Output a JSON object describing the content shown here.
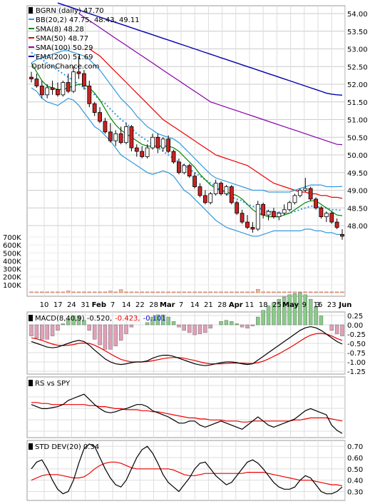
{
  "chart_data": [
    {
      "type": "candlestick",
      "panel": "price",
      "legend": [
        {
          "text": "BGRN (daily) 47.70",
          "color": "#000000",
          "marker": "square"
        },
        {
          "text": "BB(20,2) 47.75, 48.43, 49.11",
          "color": "#3399dd"
        },
        {
          "text": "SMA(8) 48.28",
          "color": "#008800"
        },
        {
          "text": "SMA(50) 48.77",
          "color": "#ee0000"
        },
        {
          "text": "SMA(100) 50.29",
          "color": "#8800aa"
        },
        {
          "text": "EMA(200) 51.69",
          "color": "#0000aa"
        },
        {
          "text": "OptionChance.com",
          "color": "#000000"
        }
      ],
      "y_ticks": [
        "54.00",
        "53.50",
        "53.00",
        "52.50",
        "52.00",
        "51.50",
        "51.00",
        "50.50",
        "50.00",
        "49.50",
        "49.00",
        "48.50",
        "48.00"
      ],
      "volume_ticks": [
        "700K",
        "600K",
        "500K",
        "400K",
        "300K",
        "200K",
        "100K"
      ],
      "x_ticks": [
        "10",
        "17",
        "24",
        "31",
        "Feb",
        "7",
        "14",
        "22",
        "28",
        "Mar",
        "7",
        "14",
        "21",
        "28",
        "Apr",
        "11",
        "18",
        "25",
        "May",
        "9",
        "16",
        "23",
        "Jun"
      ],
      "x_ticks_bold": [
        "Feb",
        "Mar",
        "Apr",
        "May",
        "Jun"
      ],
      "extra_labels": [
        "3"
      ],
      "ylim": [
        47.6,
        54.2
      ],
      "candles": [
        [
          52.2,
          52.35,
          52.05,
          52.15
        ],
        [
          52.15,
          52.3,
          51.9,
          51.95
        ],
        [
          51.95,
          52.1,
          51.6,
          51.7
        ],
        [
          51.7,
          52.0,
          51.6,
          51.9
        ],
        [
          51.9,
          52.1,
          51.7,
          51.85
        ],
        [
          51.85,
          52.05,
          51.65,
          51.7
        ],
        [
          51.7,
          52.1,
          51.65,
          52.05
        ],
        [
          52.05,
          52.3,
          51.75,
          51.8
        ],
        [
          51.8,
          52.5,
          51.75,
          52.35
        ],
        [
          52.35,
          52.8,
          52.15,
          52.3
        ],
        [
          52.3,
          52.4,
          51.85,
          51.95
        ],
        [
          51.95,
          52.1,
          51.35,
          51.45
        ],
        [
          51.45,
          51.5,
          51.1,
          51.2
        ],
        [
          51.2,
          51.35,
          50.9,
          50.95
        ],
        [
          50.95,
          51.05,
          50.6,
          50.65
        ],
        [
          50.65,
          50.9,
          50.35,
          50.4
        ],
        [
          50.4,
          50.7,
          50.25,
          50.6
        ],
        [
          50.6,
          50.8,
          50.3,
          50.35
        ],
        [
          50.35,
          50.9,
          50.3,
          50.8
        ],
        [
          50.8,
          50.85,
          50.1,
          50.2
        ],
        [
          50.2,
          50.3,
          49.95,
          50.1
        ],
        [
          50.1,
          50.25,
          49.9,
          49.95
        ],
        [
          49.95,
          50.3,
          49.9,
          50.2
        ],
        [
          50.2,
          50.6,
          50.15,
          50.5
        ],
        [
          50.5,
          50.6,
          50.05,
          50.2
        ],
        [
          50.2,
          50.5,
          50.1,
          50.45
        ],
        [
          50.45,
          50.55,
          50.05,
          50.1
        ],
        [
          50.1,
          50.15,
          49.75,
          49.8
        ],
        [
          49.8,
          49.9,
          49.45,
          49.5
        ],
        [
          49.5,
          49.75,
          49.45,
          49.7
        ],
        [
          49.7,
          49.75,
          49.35,
          49.4
        ],
        [
          49.4,
          49.5,
          49.05,
          49.1
        ],
        [
          49.1,
          49.2,
          48.8,
          48.85
        ],
        [
          48.85,
          49.0,
          48.6,
          48.65
        ],
        [
          48.65,
          48.95,
          48.6,
          48.9
        ],
        [
          48.9,
          49.3,
          48.85,
          49.2
        ],
        [
          49.2,
          49.25,
          48.85,
          48.9
        ],
        [
          48.9,
          49.15,
          48.85,
          49.1
        ],
        [
          49.1,
          49.15,
          48.6,
          48.65
        ],
        [
          48.65,
          48.7,
          48.3,
          48.35
        ],
        [
          48.35,
          48.45,
          48.05,
          48.1
        ],
        [
          48.1,
          48.3,
          47.9,
          47.95
        ],
        [
          47.95,
          48.1,
          47.8,
          47.9
        ],
        [
          47.9,
          48.7,
          47.85,
          48.6
        ],
        [
          48.6,
          48.65,
          48.2,
          48.3
        ],
        [
          48.3,
          48.45,
          48.15,
          48.4
        ],
        [
          48.4,
          48.5,
          48.2,
          48.25
        ],
        [
          48.25,
          48.4,
          48.15,
          48.35
        ],
        [
          48.35,
          48.6,
          48.3,
          48.45
        ],
        [
          48.45,
          48.7,
          48.4,
          48.65
        ],
        [
          48.65,
          48.9,
          48.6,
          48.85
        ],
        [
          48.85,
          49.05,
          48.8,
          49.0
        ],
        [
          49.0,
          49.35,
          48.95,
          49.05
        ],
        [
          49.05,
          49.1,
          48.7,
          48.75
        ],
        [
          48.75,
          48.8,
          48.45,
          48.5
        ],
        [
          48.5,
          48.55,
          48.2,
          48.25
        ],
        [
          48.25,
          48.4,
          48.1,
          48.35
        ],
        [
          48.35,
          48.4,
          48.05,
          48.1
        ],
        [
          48.1,
          48.2,
          47.9,
          47.95
        ],
        [
          47.75,
          47.9,
          47.6,
          47.7
        ]
      ],
      "volume": [
        10,
        10,
        10,
        10,
        10,
        10,
        10,
        22,
        10,
        10,
        10,
        10,
        10,
        10,
        10,
        20,
        10,
        38,
        10,
        10,
        10,
        10,
        10,
        10,
        10,
        10,
        10,
        10,
        10,
        10,
        10,
        10,
        10,
        10,
        10,
        10,
        10,
        10,
        10,
        10,
        10,
        10,
        10,
        42,
        10,
        10,
        10,
        10,
        10,
        10,
        10,
        10,
        10,
        10,
        10,
        10,
        10,
        10,
        10,
        10
      ],
      "volume_unit": "K",
      "bb_upper": [
        52.6,
        52.7,
        52.75,
        52.8,
        52.85,
        52.9,
        52.95,
        52.95,
        52.9,
        52.85,
        52.8,
        52.7,
        52.55,
        52.4,
        52.2,
        52.0,
        51.8,
        51.6,
        51.45,
        51.3,
        51.1,
        50.95,
        50.8,
        50.7,
        50.6,
        50.55,
        50.5,
        50.45,
        50.35,
        50.2,
        50.05,
        49.9,
        49.75,
        49.6,
        49.45,
        49.35,
        49.3,
        49.25,
        49.2,
        49.15,
        49.1,
        49.05,
        49.0,
        49.0,
        49.0,
        48.95,
        48.95,
        48.95,
        48.95,
        48.95,
        49.0,
        49.05,
        49.1,
        49.15,
        49.15,
        49.15,
        49.1,
        49.1,
        49.1,
        49.11
      ],
      "bb_middle": [
        52.9,
        52.8,
        52.7,
        52.6,
        52.5,
        52.4,
        52.3,
        52.2,
        52.1,
        52.0,
        51.9,
        51.8,
        51.7,
        51.55,
        51.45,
        51.3,
        51.15,
        51.0,
        50.9,
        50.75,
        50.6,
        50.5,
        50.4,
        50.3,
        50.2,
        50.1,
        50.0,
        49.9,
        49.8,
        49.7,
        49.6,
        49.5,
        49.4,
        49.3,
        49.2,
        49.1,
        49.0,
        48.9,
        48.8,
        48.75,
        48.7,
        48.6,
        48.55,
        48.5,
        48.45,
        48.4,
        48.4,
        48.35,
        48.35,
        48.35,
        48.4,
        48.45,
        48.5,
        48.55,
        48.55,
        48.5,
        48.5,
        48.45,
        48.45,
        48.43
      ],
      "bb_lower": [
        51.9,
        51.8,
        51.6,
        51.5,
        51.45,
        51.4,
        51.5,
        51.6,
        51.55,
        51.4,
        51.2,
        51.0,
        50.8,
        50.7,
        50.55,
        50.4,
        50.2,
        50.0,
        49.9,
        49.8,
        49.7,
        49.6,
        49.5,
        49.45,
        49.5,
        49.55,
        49.5,
        49.4,
        49.2,
        49.0,
        48.9,
        48.75,
        48.6,
        48.45,
        48.3,
        48.15,
        48.05,
        47.95,
        47.9,
        47.85,
        47.8,
        47.75,
        47.7,
        47.7,
        47.75,
        47.8,
        47.85,
        47.85,
        47.85,
        47.85,
        47.85,
        47.85,
        47.9,
        47.9,
        47.85,
        47.85,
        47.8,
        47.8,
        47.75,
        47.75
      ],
      "sma8": [
        52.6,
        52.35,
        52.1,
        51.95,
        51.9,
        51.85,
        51.85,
        51.9,
        51.95,
        52.0,
        52.0,
        51.9,
        51.75,
        51.55,
        51.3,
        51.05,
        50.85,
        50.7,
        50.6,
        50.5,
        50.4,
        50.3,
        50.25,
        50.25,
        50.25,
        50.25,
        50.25,
        50.2,
        50.1,
        49.95,
        49.8,
        49.65,
        49.45,
        49.3,
        49.15,
        49.05,
        49.0,
        48.95,
        48.9,
        48.85,
        48.75,
        48.6,
        48.45,
        48.35,
        48.3,
        48.25,
        48.25,
        48.25,
        48.3,
        48.35,
        48.45,
        48.55,
        48.65,
        48.7,
        48.7,
        48.6,
        48.5,
        48.4,
        48.3,
        48.28
      ],
      "sma50": [
        null,
        null,
        null,
        null,
        null,
        null,
        null,
        null,
        null,
        null,
        null,
        53.0,
        52.9,
        52.8,
        52.65,
        52.5,
        52.35,
        52.2,
        52.05,
        51.9,
        51.75,
        51.6,
        51.45,
        51.3,
        51.15,
        51.0,
        50.9,
        50.8,
        50.7,
        50.6,
        50.5,
        50.4,
        50.3,
        50.2,
        50.1,
        50.0,
        49.95,
        49.9,
        49.85,
        49.8,
        49.75,
        49.7,
        49.6,
        49.5,
        49.4,
        49.3,
        49.2,
        49.15,
        49.1,
        49.05,
        49.0,
        48.95,
        48.95,
        48.9,
        48.9,
        48.85,
        48.85,
        48.8,
        48.8,
        48.77
      ],
      "sma100": [
        null,
        null,
        null,
        null,
        null,
        null,
        null,
        null,
        null,
        54.0,
        53.9,
        53.8,
        53.7,
        53.6,
        53.5,
        53.4,
        53.3,
        53.2,
        53.1,
        53.0,
        52.9,
        52.8,
        52.7,
        52.6,
        52.5,
        52.4,
        52.3,
        52.2,
        52.1,
        52.0,
        51.9,
        51.8,
        51.7,
        51.6,
        51.5,
        51.45,
        51.4,
        51.35,
        51.3,
        51.25,
        51.2,
        51.15,
        51.1,
        51.05,
        51.0,
        50.95,
        50.9,
        50.85,
        50.8,
        50.75,
        50.7,
        50.65,
        50.6,
        50.55,
        50.5,
        50.45,
        50.4,
        50.35,
        50.3,
        50.29
      ],
      "ema200": [
        null,
        null,
        null,
        null,
        null,
        54.3,
        54.25,
        54.2,
        54.15,
        54.1,
        54.05,
        54.0,
        53.95,
        53.9,
        53.85,
        53.8,
        53.75,
        53.7,
        53.65,
        53.6,
        53.55,
        53.5,
        53.45,
        53.4,
        53.35,
        53.3,
        53.25,
        53.2,
        53.15,
        53.1,
        53.05,
        53.0,
        52.95,
        52.9,
        52.85,
        52.8,
        52.75,
        52.7,
        52.65,
        52.6,
        52.55,
        52.5,
        52.45,
        52.4,
        52.35,
        52.3,
        52.25,
        52.2,
        52.15,
        52.1,
        52.05,
        52.0,
        51.95,
        51.9,
        51.85,
        51.8,
        51.75,
        51.72,
        51.7,
        51.69
      ]
    },
    {
      "type": "bar+line",
      "panel": "macd",
      "legend_prefix": "MACD(8,40,9) -0.520,",
      "legend_signal": "-0.423,",
      "legend_hist": "-0.101",
      "y_ticks": [
        "0.25",
        "0.00",
        "-0.25",
        "-0.50",
        "-0.75",
        "-1.00",
        "-1.25"
      ],
      "ylim": [
        -1.3,
        0.35
      ],
      "macd": [
        -0.45,
        -0.5,
        -0.55,
        -0.6,
        -0.62,
        -0.6,
        -0.55,
        -0.5,
        -0.45,
        -0.42,
        -0.45,
        -0.55,
        -0.68,
        -0.8,
        -0.92,
        -1.0,
        -1.05,
        -1.07,
        -1.05,
        -1.02,
        -1.0,
        -1.0,
        -0.97,
        -0.9,
        -0.85,
        -0.82,
        -0.82,
        -0.85,
        -0.9,
        -0.95,
        -1.0,
        -1.05,
        -1.08,
        -1.1,
        -1.08,
        -1.05,
        -1.02,
        -1.0,
        -1.0,
        -1.02,
        -1.05,
        -1.07,
        -1.05,
        -0.95,
        -0.85,
        -0.75,
        -0.65,
        -0.55,
        -0.45,
        -0.35,
        -0.25,
        -0.15,
        -0.08,
        -0.05,
        -0.08,
        -0.15,
        -0.25,
        -0.35,
        -0.45,
        -0.52
      ],
      "signal": [
        -0.35,
        -0.38,
        -0.42,
        -0.47,
        -0.52,
        -0.55,
        -0.56,
        -0.55,
        -0.53,
        -0.5,
        -0.49,
        -0.5,
        -0.55,
        -0.62,
        -0.7,
        -0.78,
        -0.86,
        -0.93,
        -0.97,
        -1.0,
        -1.0,
        -1.0,
        -0.99,
        -0.97,
        -0.94,
        -0.91,
        -0.89,
        -0.88,
        -0.88,
        -0.9,
        -0.93,
        -0.96,
        -1.0,
        -1.03,
        -1.05,
        -1.05,
        -1.05,
        -1.04,
        -1.03,
        -1.03,
        -1.03,
        -1.04,
        -1.04,
        -1.02,
        -0.98,
        -0.92,
        -0.85,
        -0.78,
        -0.7,
        -0.62,
        -0.53,
        -0.44,
        -0.35,
        -0.28,
        -0.24,
        -0.23,
        -0.25,
        -0.3,
        -0.37,
        -0.42
      ]
    },
    {
      "type": "line",
      "panel": "rs",
      "legend": "RS vs SPY",
      "rs": [
        40,
        38,
        36,
        36,
        37,
        38,
        40,
        44,
        46,
        48,
        50,
        45,
        40,
        36,
        33,
        32,
        33,
        35,
        36,
        38,
        40,
        40,
        38,
        34,
        32,
        30,
        28,
        25,
        22,
        22,
        24,
        24,
        20,
        18,
        20,
        22,
        24,
        22,
        20,
        18,
        16,
        20,
        24,
        28,
        24,
        20,
        18,
        20,
        22,
        24,
        26,
        30,
        34,
        36,
        34,
        32,
        30,
        20,
        15,
        12
      ],
      "rs_ma": [
        42,
        42,
        41,
        41,
        40,
        40,
        40,
        40,
        40,
        40,
        40,
        39,
        39,
        38,
        38,
        37,
        36,
        36,
        35,
        35,
        35,
        34,
        34,
        33,
        33,
        32,
        31,
        30,
        29,
        28,
        27,
        27,
        26,
        26,
        25,
        25,
        25,
        24,
        24,
        24,
        23,
        23,
        24,
        24,
        24,
        24,
        24,
        24,
        24,
        24,
        25,
        25,
        26,
        27,
        27,
        27,
        27,
        26,
        25,
        24
      ]
    },
    {
      "type": "line",
      "panel": "std",
      "legend": "STD DEV(20) 0.34",
      "y_ticks": [
        "0.70",
        "0.60",
        "0.50",
        "0.40",
        "0.30"
      ],
      "ylim": [
        0.22,
        0.74
      ],
      "std": [
        0.5,
        0.56,
        0.58,
        0.5,
        0.4,
        0.32,
        0.28,
        0.3,
        0.4,
        0.55,
        0.68,
        0.72,
        0.7,
        0.6,
        0.5,
        0.42,
        0.36,
        0.34,
        0.4,
        0.5,
        0.6,
        0.67,
        0.7,
        0.64,
        0.55,
        0.45,
        0.38,
        0.34,
        0.3,
        0.36,
        0.42,
        0.5,
        0.55,
        0.56,
        0.5,
        0.44,
        0.4,
        0.36,
        0.38,
        0.44,
        0.5,
        0.56,
        0.58,
        0.55,
        0.5,
        0.44,
        0.38,
        0.34,
        0.32,
        0.32,
        0.34,
        0.4,
        0.44,
        0.42,
        0.36,
        0.3,
        0.28,
        0.28,
        0.3,
        0.34
      ],
      "std_ma": [
        0.4,
        0.42,
        0.44,
        0.45,
        0.45,
        0.45,
        0.44,
        0.43,
        0.42,
        0.42,
        0.43,
        0.46,
        0.5,
        0.53,
        0.55,
        0.56,
        0.56,
        0.55,
        0.53,
        0.51,
        0.5,
        0.5,
        0.5,
        0.5,
        0.5,
        0.5,
        0.5,
        0.49,
        0.47,
        0.45,
        0.44,
        0.44,
        0.45,
        0.46,
        0.46,
        0.46,
        0.46,
        0.46,
        0.46,
        0.46,
        0.46,
        0.47,
        0.47,
        0.47,
        0.47,
        0.46,
        0.45,
        0.44,
        0.43,
        0.42,
        0.41,
        0.4,
        0.4,
        0.4,
        0.39,
        0.38,
        0.37,
        0.36,
        0.36,
        0.35
      ]
    }
  ]
}
